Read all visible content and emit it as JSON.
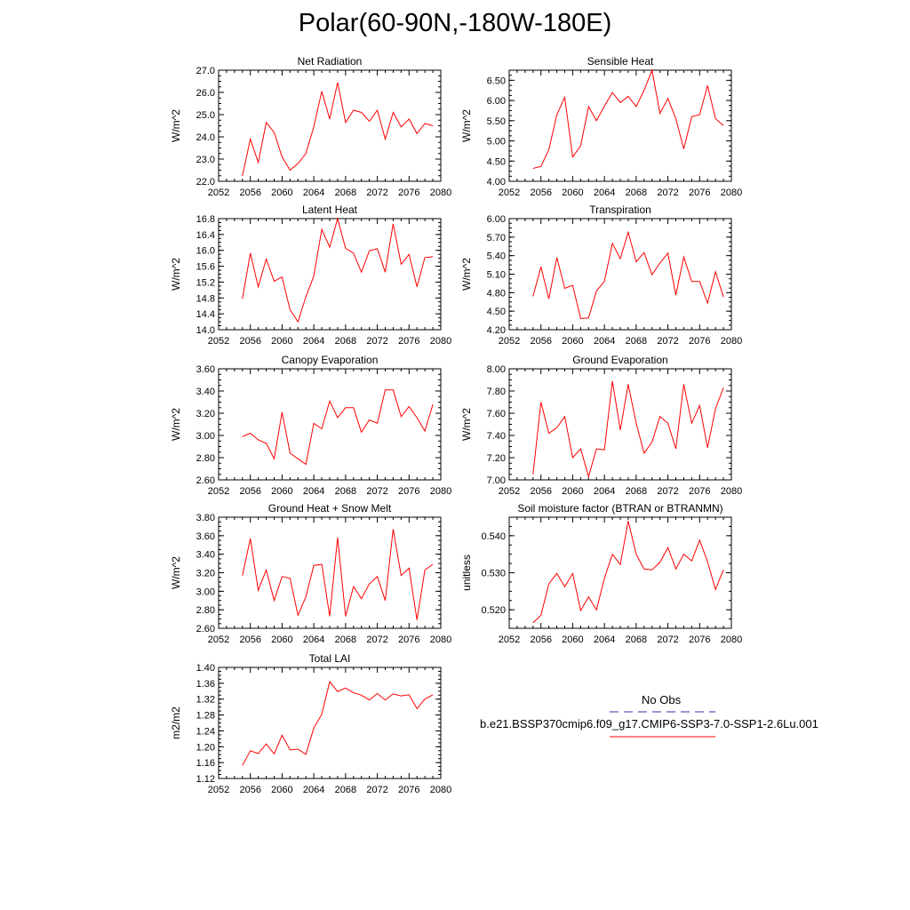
{
  "title": "Polar(60-90N,-180W-180E)",
  "colors": {
    "series": "#ff0000",
    "obs": "#3333aa",
    "axis": "#000000"
  },
  "legend": {
    "obs_label": "No Obs",
    "model_label": "b.e21.BSSP370cmip6.f09_g17.CMIP6-SSP3-7.0-SSP1-2.6Lu.001"
  },
  "chart_data": [
    {
      "type": "line",
      "title": "Net Radiation",
      "ylabel": "W/m^2",
      "xlim": [
        2052,
        2080
      ],
      "ylim": [
        22.0,
        27.0
      ],
      "xticks": [
        2052,
        2056,
        2060,
        2064,
        2068,
        2072,
        2076,
        2080
      ],
      "xtick_labels": [
        "2052",
        "2056",
        "2060",
        "2064",
        "2068",
        "2072",
        "2076",
        "2080"
      ],
      "yticks": [
        22.0,
        23.0,
        24.0,
        25.0,
        26.0,
        27.0
      ],
      "ytick_labels": [
        "22.0",
        "23.0",
        "24.0",
        "25.0",
        "26.0",
        "27.0"
      ],
      "x": [
        2055,
        2056,
        2057,
        2058,
        2059,
        2060,
        2061,
        2062,
        2063,
        2064,
        2065,
        2066,
        2067,
        2068,
        2069,
        2070,
        2071,
        2072,
        2073,
        2074,
        2075,
        2076,
        2077,
        2078,
        2079
      ],
      "series": [
        {
          "values": [
            22.25,
            23.9,
            22.85,
            24.65,
            24.2,
            23.1,
            22.5,
            22.8,
            23.25,
            24.45,
            26.05,
            24.8,
            26.45,
            24.65,
            25.2,
            25.1,
            24.7,
            25.2,
            23.9,
            25.1,
            24.45,
            24.8,
            24.15,
            24.6,
            24.5
          ]
        }
      ]
    },
    {
      "type": "line",
      "title": "Sensible Heat",
      "ylabel": "W/m^2",
      "xlim": [
        2052,
        2080
      ],
      "ylim": [
        4.0,
        6.75
      ],
      "xticks": [
        2052,
        2056,
        2060,
        2064,
        2068,
        2072,
        2076,
        2080
      ],
      "xtick_labels": [
        "2052",
        "2056",
        "2060",
        "2064",
        "2068",
        "2072",
        "2076",
        "2080"
      ],
      "yticks": [
        4.0,
        4.5,
        5.0,
        5.5,
        6.0,
        6.5
      ],
      "ytick_labels": [
        "4.00",
        "4.50",
        "5.00",
        "5.50",
        "6.00",
        "6.50"
      ],
      "x": [
        2055,
        2056,
        2057,
        2058,
        2059,
        2060,
        2061,
        2062,
        2063,
        2064,
        2065,
        2066,
        2067,
        2068,
        2069,
        2070,
        2071,
        2072,
        2073,
        2074,
        2075,
        2076,
        2077,
        2078,
        2079
      ],
      "series": [
        {
          "values": [
            4.32,
            4.37,
            4.78,
            5.65,
            6.08,
            4.6,
            4.88,
            5.85,
            5.5,
            5.86,
            6.2,
            5.95,
            6.1,
            5.85,
            6.25,
            6.75,
            5.68,
            6.05,
            5.55,
            4.8,
            5.6,
            5.65,
            6.37,
            5.55,
            5.38
          ]
        }
      ]
    },
    {
      "type": "line",
      "title": "Latent Heat",
      "ylabel": "W/m^2",
      "xlim": [
        2052,
        2080
      ],
      "ylim": [
        14.0,
        16.8
      ],
      "xticks": [
        2052,
        2056,
        2060,
        2064,
        2068,
        2072,
        2076,
        2080
      ],
      "xtick_labels": [
        "2052",
        "2056",
        "2060",
        "2064",
        "2068",
        "2072",
        "2076",
        "2080"
      ],
      "yticks": [
        14.0,
        14.4,
        14.8,
        15.2,
        15.6,
        16.0,
        16.4,
        16.8
      ],
      "ytick_labels": [
        "14.0",
        "14.4",
        "14.8",
        "15.2",
        "15.6",
        "16.0",
        "16.4",
        "16.8"
      ],
      "x": [
        2055,
        2056,
        2057,
        2058,
        2059,
        2060,
        2061,
        2062,
        2063,
        2064,
        2065,
        2066,
        2067,
        2068,
        2069,
        2070,
        2071,
        2072,
        2073,
        2074,
        2075,
        2076,
        2077,
        2078,
        2079
      ],
      "series": [
        {
          "values": [
            14.78,
            15.93,
            15.08,
            15.78,
            15.22,
            15.33,
            14.5,
            14.2,
            14.83,
            15.35,
            16.53,
            16.08,
            16.8,
            16.05,
            15.93,
            15.45,
            15.99,
            16.04,
            15.45,
            16.67,
            15.65,
            15.9,
            15.08,
            15.82,
            15.84
          ]
        }
      ]
    },
    {
      "type": "line",
      "title": "Transpiration",
      "ylabel": "W/m^2",
      "xlim": [
        2052,
        2080
      ],
      "ylim": [
        4.2,
        6.0
      ],
      "xticks": [
        2052,
        2056,
        2060,
        2064,
        2068,
        2072,
        2076,
        2080
      ],
      "xtick_labels": [
        "2052",
        "2056",
        "2060",
        "2064",
        "2068",
        "2072",
        "2076",
        "2080"
      ],
      "yticks": [
        4.2,
        4.5,
        4.8,
        5.1,
        5.4,
        5.7,
        6.0
      ],
      "ytick_labels": [
        "4.20",
        "4.50",
        "4.80",
        "5.10",
        "5.40",
        "5.70",
        "6.00"
      ],
      "x": [
        2055,
        2056,
        2057,
        2058,
        2059,
        2060,
        2061,
        2062,
        2063,
        2064,
        2065,
        2066,
        2067,
        2068,
        2069,
        2070,
        2071,
        2072,
        2073,
        2074,
        2075,
        2076,
        2077,
        2078,
        2079
      ],
      "series": [
        {
          "values": [
            4.74,
            5.22,
            4.7,
            5.37,
            4.87,
            4.92,
            4.38,
            4.39,
            4.83,
            4.98,
            5.6,
            5.35,
            5.78,
            5.3,
            5.45,
            5.09,
            5.28,
            5.44,
            4.76,
            5.38,
            4.98,
            4.98,
            4.63,
            5.14,
            4.73
          ]
        }
      ]
    },
    {
      "type": "line",
      "title": "Canopy Evaporation",
      "ylabel": "W/m^2",
      "xlim": [
        2052,
        2080
      ],
      "ylim": [
        2.6,
        3.6
      ],
      "xticks": [
        2052,
        2056,
        2060,
        2064,
        2068,
        2072,
        2076,
        2080
      ],
      "xtick_labels": [
        "2052",
        "2056",
        "2060",
        "2064",
        "2068",
        "2072",
        "2076",
        "2080"
      ],
      "yticks": [
        2.6,
        2.8,
        3.0,
        3.2,
        3.4,
        3.6
      ],
      "ytick_labels": [
        "2.60",
        "2.80",
        "3.00",
        "3.20",
        "3.40",
        "3.60"
      ],
      "x": [
        2055,
        2056,
        2057,
        2058,
        2059,
        2060,
        2061,
        2062,
        2063,
        2064,
        2065,
        2066,
        2067,
        2068,
        2069,
        2070,
        2071,
        2072,
        2073,
        2074,
        2075,
        2076,
        2077,
        2078,
        2079
      ],
      "series": [
        {
          "values": [
            2.99,
            3.02,
            2.96,
            2.93,
            2.79,
            3.21,
            2.84,
            2.79,
            2.74,
            3.11,
            3.06,
            3.31,
            3.16,
            3.25,
            3.25,
            3.03,
            3.14,
            3.11,
            3.41,
            3.41,
            3.17,
            3.26,
            3.16,
            3.04,
            3.28
          ]
        }
      ]
    },
    {
      "type": "line",
      "title": "Ground Evaporation",
      "ylabel": "W/m^2",
      "xlim": [
        2052,
        2080
      ],
      "ylim": [
        7.0,
        8.0
      ],
      "xticks": [
        2052,
        2056,
        2060,
        2064,
        2068,
        2072,
        2076,
        2080
      ],
      "xtick_labels": [
        "2052",
        "2056",
        "2060",
        "2064",
        "2068",
        "2072",
        "2076",
        "2080"
      ],
      "yticks": [
        7.0,
        7.2,
        7.4,
        7.6,
        7.8,
        8.0
      ],
      "ytick_labels": [
        "7.00",
        "7.20",
        "7.40",
        "7.60",
        "7.80",
        "8.00"
      ],
      "x": [
        2055,
        2056,
        2057,
        2058,
        2059,
        2060,
        2061,
        2062,
        2063,
        2064,
        2065,
        2066,
        2067,
        2068,
        2069,
        2070,
        2071,
        2072,
        2073,
        2074,
        2075,
        2076,
        2077,
        2078,
        2079
      ],
      "series": [
        {
          "values": [
            7.05,
            7.7,
            7.42,
            7.47,
            7.57,
            7.2,
            7.28,
            7.03,
            7.28,
            7.27,
            7.89,
            7.45,
            7.86,
            7.51,
            7.24,
            7.34,
            7.57,
            7.51,
            7.28,
            7.86,
            7.51,
            7.67,
            7.29,
            7.64,
            7.83
          ]
        }
      ]
    },
    {
      "type": "line",
      "title": "Ground Heat + Snow Melt",
      "ylabel": "W/m^2",
      "xlim": [
        2052,
        2080
      ],
      "ylim": [
        2.6,
        3.8
      ],
      "xticks": [
        2052,
        2056,
        2060,
        2064,
        2068,
        2072,
        2076,
        2080
      ],
      "xtick_labels": [
        "2052",
        "2056",
        "2060",
        "2064",
        "2068",
        "2072",
        "2076",
        "2080"
      ],
      "yticks": [
        2.6,
        2.8,
        3.0,
        3.2,
        3.4,
        3.6,
        3.8
      ],
      "ytick_labels": [
        "2.60",
        "2.80",
        "3.00",
        "3.20",
        "3.40",
        "3.60",
        "3.80"
      ],
      "x": [
        2055,
        2056,
        2057,
        2058,
        2059,
        2060,
        2061,
        2062,
        2063,
        2064,
        2065,
        2066,
        2067,
        2068,
        2069,
        2070,
        2071,
        2072,
        2073,
        2074,
        2075,
        2076,
        2077,
        2078,
        2079
      ],
      "series": [
        {
          "values": [
            3.17,
            3.57,
            3.01,
            3.23,
            2.9,
            3.16,
            3.14,
            2.74,
            2.94,
            3.28,
            3.29,
            2.73,
            3.58,
            2.73,
            3.05,
            2.92,
            3.08,
            3.16,
            2.9,
            3.67,
            3.17,
            3.25,
            2.69,
            3.23,
            3.29
          ]
        }
      ]
    },
    {
      "type": "line",
      "title": "Soil moisture factor (BTRAN or BTRANMN)",
      "ylabel": "unitless",
      "xlim": [
        2052,
        2080
      ],
      "ylim": [
        0.515,
        0.545
      ],
      "xticks": [
        2052,
        2056,
        2060,
        2064,
        2068,
        2072,
        2076,
        2080
      ],
      "xtick_labels": [
        "2052",
        "2056",
        "2060",
        "2064",
        "2068",
        "2072",
        "2076",
        "2080"
      ],
      "yticks": [
        0.52,
        0.53,
        0.54
      ],
      "ytick_labels": [
        "0.520",
        "0.530",
        "0.540"
      ],
      "x": [
        2055,
        2056,
        2057,
        2058,
        2059,
        2060,
        2061,
        2062,
        2063,
        2064,
        2065,
        2066,
        2067,
        2068,
        2069,
        2070,
        2071,
        2072,
        2073,
        2074,
        2075,
        2076,
        2077,
        2078,
        2079
      ],
      "series": [
        {
          "values": [
            0.5165,
            0.5185,
            0.527,
            0.5298,
            0.5262,
            0.5298,
            0.5198,
            0.5235,
            0.52,
            0.5285,
            0.535,
            0.5322,
            0.544,
            0.535,
            0.531,
            0.5308,
            0.5328,
            0.5368,
            0.531,
            0.535,
            0.5332,
            0.5388,
            0.533,
            0.5255,
            0.5308
          ]
        }
      ]
    },
    {
      "type": "line",
      "title": "Total LAI",
      "ylabel": "m2/m2",
      "xlim": [
        2052,
        2080
      ],
      "ylim": [
        1.12,
        1.4
      ],
      "xticks": [
        2052,
        2056,
        2060,
        2064,
        2068,
        2072,
        2076,
        2080
      ],
      "xtick_labels": [
        "2052",
        "2056",
        "2060",
        "2064",
        "2068",
        "2072",
        "2076",
        "2080"
      ],
      "yticks": [
        1.12,
        1.16,
        1.2,
        1.24,
        1.28,
        1.32,
        1.36,
        1.4
      ],
      "ytick_labels": [
        "1.12",
        "1.16",
        "1.20",
        "1.24",
        "1.28",
        "1.32",
        "1.36",
        "1.40"
      ],
      "x": [
        2055,
        2056,
        2057,
        2058,
        2059,
        2060,
        2061,
        2062,
        2063,
        2064,
        2065,
        2066,
        2067,
        2068,
        2069,
        2070,
        2071,
        2072,
        2073,
        2074,
        2075,
        2076,
        2077,
        2078,
        2079
      ],
      "series": [
        {
          "values": [
            1.153,
            1.19,
            1.183,
            1.207,
            1.182,
            1.229,
            1.192,
            1.194,
            1.181,
            1.247,
            1.282,
            1.364,
            1.339,
            1.348,
            1.336,
            1.33,
            1.318,
            1.334,
            1.318,
            1.333,
            1.328,
            1.331,
            1.296,
            1.32,
            1.331
          ]
        }
      ]
    }
  ]
}
